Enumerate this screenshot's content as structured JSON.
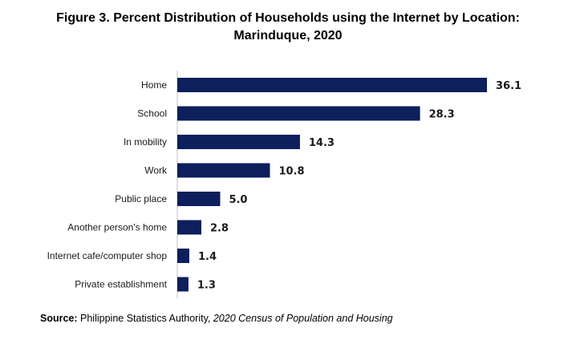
{
  "title_line1": "Figure 3. Percent Distribution of Households using the Internet by Location:",
  "title_line2": "Marinduque, 2020",
  "source": {
    "label": "Source:",
    "text": " Philippine Statistics Authority, ",
    "italic": "2020 Census of Population and Housing"
  },
  "colors": {
    "bar": "#0d1f5c"
  },
  "chart_data": {
    "type": "bar",
    "orientation": "horizontal",
    "title": "Figure 3. Percent Distribution of Households using the Internet by Location: Marinduque, 2020",
    "categories": [
      "Home",
      "School",
      "In mobility",
      "Work",
      "Public place",
      "Another person's home",
      "Internet cafe/computer shop",
      "Private establishment"
    ],
    "values": [
      36.1,
      28.3,
      14.3,
      10.8,
      5.0,
      2.8,
      1.4,
      1.3
    ],
    "value_labels": [
      "36.1",
      "28.3",
      "14.3",
      "10.8",
      "5.0",
      "2.8",
      "1.4",
      "1.3"
    ],
    "xlim": [
      0,
      36.1
    ],
    "grid": false,
    "legend": "none"
  }
}
